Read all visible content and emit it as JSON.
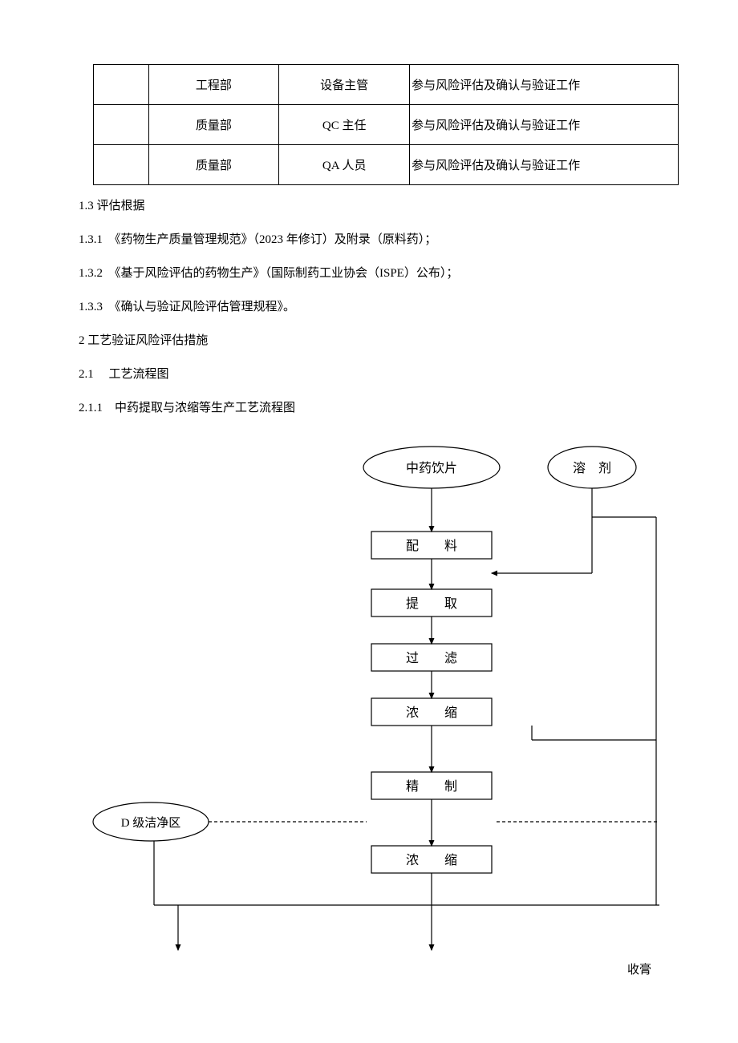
{
  "table": {
    "rows": [
      [
        "",
        "工程部",
        "设备主管",
        "参与风险评估及确认与验证工作"
      ],
      [
        "",
        "质量部",
        "QC 主任",
        "参与风险评估及确认与验证工作"
      ],
      [
        "",
        "质量部",
        "QA 人员",
        "参与风险评估及确认与验证工作"
      ]
    ]
  },
  "paras": {
    "p1": "1.3 评估根据",
    "p2": "1.3.1　《药物生产质量管理规范》（2023 年修订）及附录（原料药）；",
    "p3": "1.3.2　《基于风险评估的药物生产》（国际制药工业协会（ISPE）公布）；",
    "p4": "1.3.3　《确认与验证风险评估管理规程》。",
    "p5": "2 工艺验证风险评估措施",
    "p6": "2.1　 工艺流程图",
    "p7": "2.1.1　中药提取与浓缩等生产工艺流程图"
  },
  "flow": {
    "ellipse1": "中药饮片",
    "ellipse2": "溶　剂",
    "ellipse3": "D 级洁净区",
    "box1": "配　　料",
    "box2": "提　　取",
    "box3": "过　　滤",
    "box4": "浓　　缩",
    "box5": "精　　制",
    "box6": "浓　　缩",
    "bottom_label": "收膏",
    "style": {
      "stroke": "#000000",
      "stroke_width": 1.2,
      "font_size": 16,
      "font_family": "SimSun",
      "dash": "4,3",
      "bg": "#ffffff"
    }
  }
}
